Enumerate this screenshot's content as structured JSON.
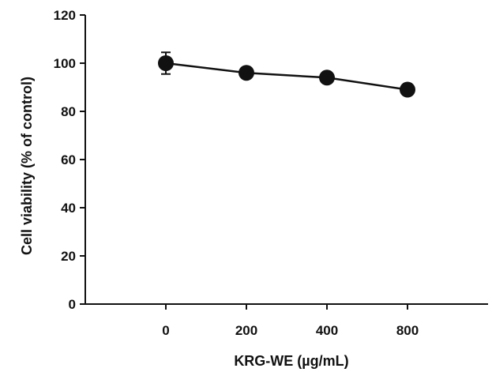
{
  "chart_data": {
    "type": "line",
    "title": "",
    "xlabel": "KRG-WE (µg/mL)",
    "ylabel": "Cell viability (% of control)",
    "categories": [
      "0",
      "200",
      "400",
      "800"
    ],
    "series": [
      {
        "values": [
          100,
          96,
          94,
          89
        ],
        "error": [
          4.5,
          0,
          0,
          0
        ]
      }
    ],
    "ylim": [
      0,
      120
    ],
    "yticks": [
      0,
      20,
      40,
      60,
      80,
      100,
      120
    ],
    "grid": false,
    "legend": "none"
  }
}
